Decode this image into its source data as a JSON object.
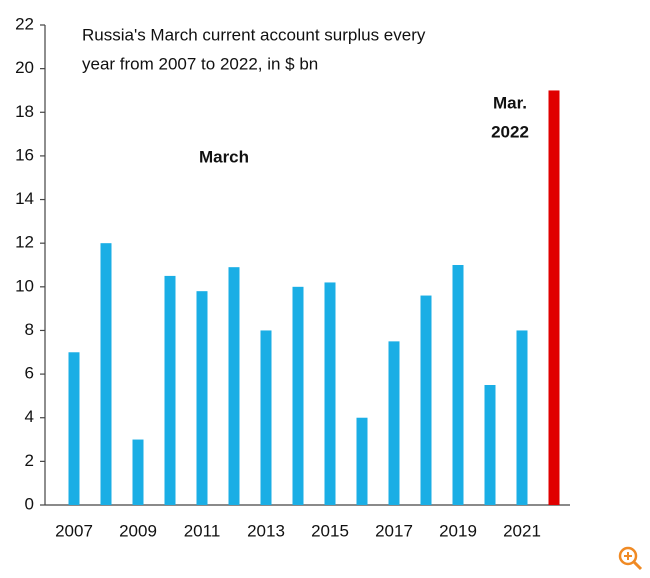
{
  "chart_data": {
    "type": "bar",
    "title": [
      "Russia's March current account surplus every",
      "year from 2007 to 2022, in $ bn"
    ],
    "annotations": [
      {
        "text": [
          "March"
        ]
      },
      {
        "text": [
          "Mar.",
          "2022"
        ],
        "color": "#e00000"
      }
    ],
    "categories": [
      "2007",
      null,
      "2009",
      null,
      "2011",
      null,
      "2013",
      null,
      "2015",
      null,
      "2017",
      null,
      "2019",
      null,
      "2021",
      null
    ],
    "values": [
      7,
      12,
      3,
      10.5,
      9.8,
      10.9,
      8,
      10,
      10.2,
      4,
      7.5,
      9.6,
      11,
      5.5,
      8,
      19
    ],
    "colors": [
      "#1aaee5",
      "#1aaee5",
      "#1aaee5",
      "#1aaee5",
      "#1aaee5",
      "#1aaee5",
      "#1aaee5",
      "#1aaee5",
      "#1aaee5",
      "#1aaee5",
      "#1aaee5",
      "#1aaee5",
      "#1aaee5",
      "#1aaee5",
      "#1aaee5",
      "#e00000"
    ],
    "ylim": [
      0,
      22
    ],
    "yticks": [
      0,
      2,
      4,
      6,
      8,
      10,
      12,
      14,
      16,
      18,
      20,
      22
    ],
    "grid": false
  }
}
